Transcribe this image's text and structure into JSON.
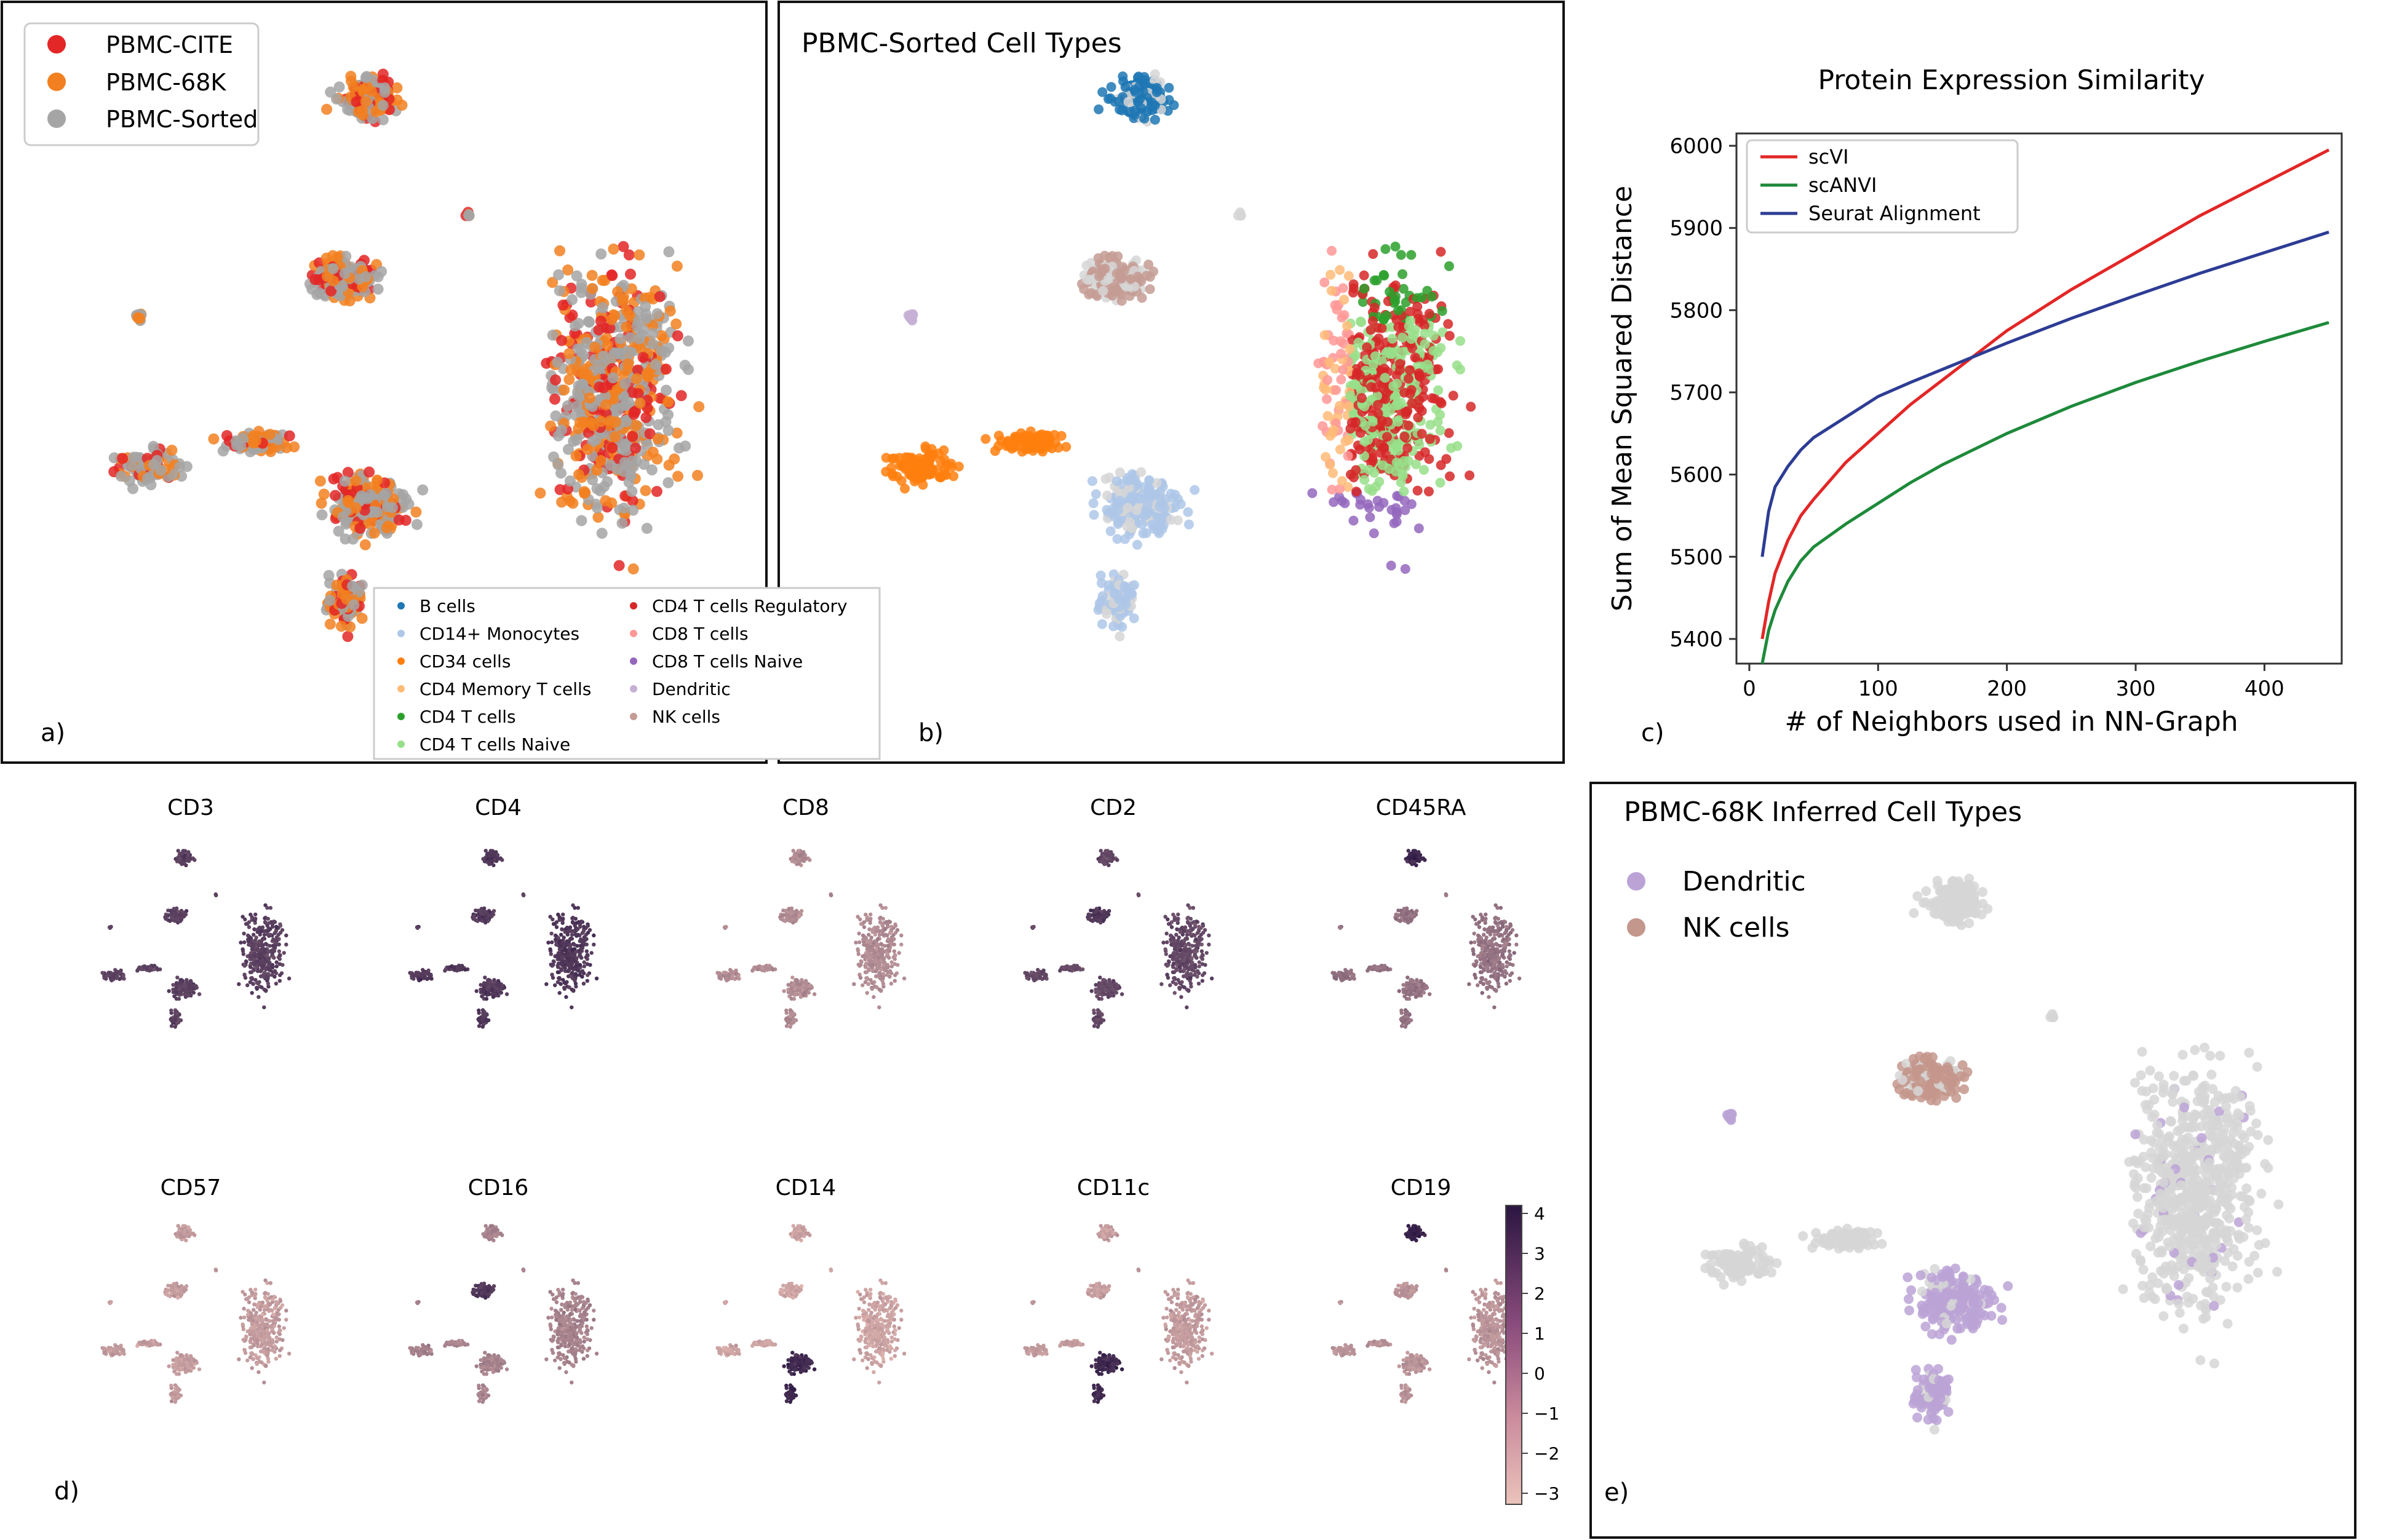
{
  "panel_labels": {
    "a": "a)",
    "b": "b)",
    "c": "c)",
    "d": "d)",
    "e": "e)"
  },
  "colors": {
    "cite": "#e32626",
    "k68": "#f28020",
    "sorted": "#a5a5a5",
    "grey_bg": "#d6d6d6",
    "dendritic": "#bba3d6",
    "nk": "#c4978c",
    "scvi": "#e32626",
    "scanvi": "#1e8a3a",
    "seurat": "#2d3c94",
    "cmap_low": "#e9bdb5",
    "cmap_high": "#2c1844"
  },
  "panel_a": {
    "legend": [
      {
        "label": "PBMC-CITE",
        "color": "#e32626"
      },
      {
        "label": "PBMC-68K",
        "color": "#f28020"
      },
      {
        "label": "PBMC-Sorted",
        "color": "#a5a5a5"
      }
    ]
  },
  "panel_b": {
    "title": "PBMC-Sorted Cell Types",
    "legend": [
      {
        "label": "B cells",
        "color": "#1f77b4"
      },
      {
        "label": "CD14+ Monocytes",
        "color": "#aec7e8"
      },
      {
        "label": "CD34 cells",
        "color": "#ff7f0e"
      },
      {
        "label": "CD4 Memory T cells",
        "color": "#ffbb78"
      },
      {
        "label": "CD4 T cells",
        "color": "#2ca02c"
      },
      {
        "label": "CD4 T cells Naive",
        "color": "#98df8a"
      },
      {
        "label": "CD4 T cells Regulatory",
        "color": "#d62728"
      },
      {
        "label": "CD8 T cells",
        "color": "#ff9896"
      },
      {
        "label": "CD8 T cells Naive",
        "color": "#9467bd"
      },
      {
        "label": "Dendritic",
        "color": "#c5b0d5"
      },
      {
        "label": "NK cells",
        "color": "#c49c94"
      }
    ]
  },
  "chart_data": {
    "type": "line",
    "title": "Protein Expression Similarity",
    "xlabel": "# of Neighbors used in NN-Graph",
    "ylabel": "Sum of Mean Squared Distance",
    "xlim": [
      -10,
      460
    ],
    "ylim": [
      5370,
      6015
    ],
    "xticks": [
      "0",
      "100",
      "200",
      "300",
      "400"
    ],
    "yticks": [
      "5400",
      "5500",
      "5600",
      "5700",
      "5800",
      "5900",
      "6000"
    ],
    "legend_position": "top-left",
    "series": [
      {
        "name": "scVI",
        "color": "#e32626",
        "x": [
          10,
          15,
          20,
          30,
          40,
          50,
          75,
          100,
          125,
          150,
          200,
          250,
          300,
          350,
          400,
          450
        ],
        "y": [
          5400,
          5445,
          5480,
          5520,
          5550,
          5570,
          5615,
          5650,
          5685,
          5715,
          5775,
          5825,
          5870,
          5915,
          5955,
          5995
        ]
      },
      {
        "name": "scANVI",
        "color": "#1e8a3a",
        "x": [
          10,
          15,
          20,
          30,
          40,
          50,
          75,
          100,
          125,
          150,
          200,
          250,
          300,
          350,
          400,
          450
        ],
        "y": [
          5370,
          5410,
          5435,
          5470,
          5495,
          5512,
          5540,
          5565,
          5590,
          5612,
          5650,
          5683,
          5712,
          5738,
          5762,
          5785
        ]
      },
      {
        "name": "Seurat Alignment",
        "color": "#2d3c94",
        "x": [
          10,
          15,
          20,
          30,
          40,
          50,
          75,
          100,
          125,
          150,
          200,
          250,
          300,
          350,
          400,
          450
        ],
        "y": [
          5500,
          5555,
          5585,
          5610,
          5630,
          5645,
          5670,
          5695,
          5712,
          5728,
          5760,
          5790,
          5818,
          5845,
          5870,
          5895
        ]
      }
    ]
  },
  "panel_d": {
    "markers": [
      "CD3",
      "CD4",
      "CD8",
      "CD2",
      "CD45RA",
      "CD57",
      "CD16",
      "CD14",
      "CD11c",
      "CD19"
    ],
    "colorbar_ticks": [
      "4",
      "3",
      "2",
      "1",
      "0",
      "−1",
      "−2",
      "−3"
    ]
  },
  "panel_e": {
    "title": "PBMC-68K Inferred Cell Types",
    "legend": [
      {
        "label": "Dendritic",
        "color": "#bba3d6"
      },
      {
        "label": "NK cells",
        "color": "#c4978c"
      }
    ]
  }
}
